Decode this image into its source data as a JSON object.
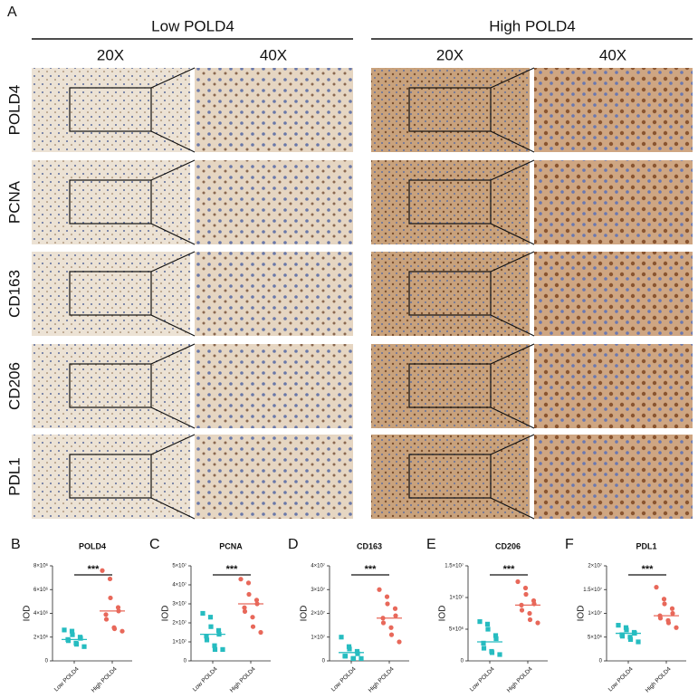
{
  "panel_a": {
    "label": "A",
    "groups": [
      "Low POLD4",
      "High POLD4"
    ],
    "magnifications": [
      "20X",
      "40X"
    ],
    "rows": [
      "POLD4",
      "PCNA",
      "CD163",
      "CD206",
      "PDL1"
    ]
  },
  "chart_data": [
    {
      "type": "scatter",
      "label": "B",
      "title": "POLD4",
      "ylabel": "IOD",
      "categories": [
        "Low POLD4",
        "High POLD4"
      ],
      "significance": "***",
      "ylim": [
        0,
        8000000
      ],
      "yticks": [
        0,
        {
          "value": 2000000,
          "label": "2×10⁶"
        },
        {
          "value": 4000000,
          "label": "4×10⁶"
        },
        {
          "value": 6000000,
          "label": "6×10⁶"
        },
        {
          "value": 8000000,
          "label": "8×10⁶"
        }
      ],
      "series": [
        {
          "color": "#26bcc0",
          "marker": "square",
          "values": [
            2600000,
            2500000,
            2200000,
            2000000,
            1900000,
            1800000,
            1700000,
            1500000,
            1400000,
            1200000
          ],
          "mean": 1800000
        },
        {
          "color": "#e8685a",
          "marker": "circle",
          "values": [
            7600000,
            6900000,
            5300000,
            4500000,
            4200000,
            3900000,
            3500000,
            2800000,
            2700000,
            2500000
          ],
          "mean": 4200000
        }
      ]
    },
    {
      "type": "scatter",
      "label": "C",
      "title": "PCNA",
      "ylabel": "IOD",
      "categories": [
        "Low POLD4",
        "High POLD4"
      ],
      "significance": "***",
      "ylim": [
        0,
        50000000
      ],
      "yticks": [
        0,
        {
          "value": 10000000,
          "label": "1×10⁷"
        },
        {
          "value": 20000000,
          "label": "2×10⁷"
        },
        {
          "value": 30000000,
          "label": "3×10⁷"
        },
        {
          "value": 40000000,
          "label": "4×10⁷"
        },
        {
          "value": 50000000,
          "label": "5×10⁷"
        }
      ],
      "series": [
        {
          "color": "#26bcc0",
          "marker": "square",
          "values": [
            25000000,
            23000000,
            18000000,
            16000000,
            14000000,
            13000000,
            11000000,
            8000000,
            6000000,
            6000000
          ],
          "mean": 14000000
        },
        {
          "color": "#e8685a",
          "marker": "circle",
          "values": [
            43000000,
            41000000,
            35000000,
            32000000,
            30000000,
            28000000,
            26000000,
            23000000,
            18000000,
            15000000
          ],
          "mean": 30000000
        }
      ]
    },
    {
      "type": "scatter",
      "label": "D",
      "title": "CD163",
      "ylabel": "IOD",
      "categories": [
        "Low POLD4",
        "High POLD4"
      ],
      "significance": "***",
      "ylim": [
        0,
        40000000
      ],
      "yticks": [
        0,
        {
          "value": 10000000,
          "label": "1×10⁷"
        },
        {
          "value": 20000000,
          "label": "2×10⁷"
        },
        {
          "value": 30000000,
          "label": "3×10⁷"
        },
        {
          "value": 40000000,
          "label": "4×10⁷"
        }
      ],
      "series": [
        {
          "color": "#26bcc0",
          "marker": "square",
          "values": [
            10000000,
            6000000,
            5000000,
            4000000,
            3000000,
            2000000,
            2000000,
            1000000,
            1000000,
            1000000
          ],
          "mean": 3500000
        },
        {
          "color": "#e8685a",
          "marker": "circle",
          "values": [
            30000000,
            27000000,
            24000000,
            22000000,
            19000000,
            18000000,
            16000000,
            14000000,
            11000000,
            8000000
          ],
          "mean": 18000000
        }
      ]
    },
    {
      "type": "scatter",
      "label": "E",
      "title": "CD206",
      "ylabel": "IOD",
      "categories": [
        "Low POLD4",
        "High POLD4"
      ],
      "significance": "***",
      "ylim": [
        0,
        15000000
      ],
      "yticks": [
        0,
        {
          "value": 5000000,
          "label": "5×10⁶"
        },
        {
          "value": 10000000,
          "label": "1×10⁷"
        },
        {
          "value": 15000000,
          "label": "1.5×10⁷"
        }
      ],
      "series": [
        {
          "color": "#26bcc0",
          "marker": "square",
          "values": [
            6200000,
            5800000,
            5000000,
            4000000,
            3500000,
            2800000,
            2000000,
            1500000,
            1300000,
            1000000
          ],
          "mean": 3000000
        },
        {
          "color": "#e8685a",
          "marker": "circle",
          "values": [
            12500000,
            11500000,
            10500000,
            9500000,
            9000000,
            8800000,
            8000000,
            7500000,
            6500000,
            6000000
          ],
          "mean": 8800000
        }
      ]
    },
    {
      "type": "scatter",
      "label": "F",
      "title": "PDL1",
      "ylabel": "IOD",
      "categories": [
        "Low POLD4",
        "High POLD4"
      ],
      "significance": "***",
      "ylim": [
        0,
        20000000
      ],
      "yticks": [
        0,
        {
          "value": 5000000,
          "label": "5×10⁶"
        },
        {
          "value": 10000000,
          "label": "1×10⁷"
        },
        {
          "value": 15000000,
          "label": "1.5×10⁷"
        },
        {
          "value": 20000000,
          "label": "2×10⁷"
        }
      ],
      "series": [
        {
          "color": "#26bcc0",
          "marker": "square",
          "values": [
            7500000,
            7000000,
            6500000,
            6000000,
            5800000,
            5500000,
            5200000,
            5000000,
            4500000,
            4000000
          ],
          "mean": 5800000
        },
        {
          "color": "#e8685a",
          "marker": "circle",
          "values": [
            15500000,
            13000000,
            12000000,
            11000000,
            10000000,
            9500000,
            9000000,
            8500000,
            8000000,
            7000000
          ],
          "mean": 9500000
        }
      ]
    }
  ]
}
